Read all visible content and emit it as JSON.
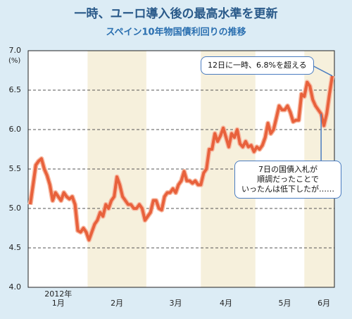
{
  "chart_data": {
    "type": "line",
    "title": "一時、ユーロ導入後の最高水準を更新",
    "subtitle": "スペイン10年物国債利回りの推移",
    "y_unit": "(%)",
    "color": "#e8613c",
    "categories": [
      null,
      null,
      null,
      null,
      null,
      null,
      null,
      null,
      null,
      null,
      "2012年\n1月",
      null,
      null,
      null,
      null,
      null,
      null,
      null,
      null,
      null,
      null,
      null,
      null,
      null,
      null,
      null,
      null,
      null,
      null,
      null,
      null,
      "2月",
      null,
      null,
      null,
      null,
      null,
      null,
      null,
      null,
      null,
      null,
      null,
      null,
      null,
      null,
      null,
      null,
      null,
      null,
      null,
      null,
      "3月",
      null,
      null,
      null,
      null,
      null,
      null,
      null,
      null,
      null,
      null,
      null,
      null,
      null,
      null,
      null,
      null,
      null,
      "4月",
      null,
      null,
      null,
      null,
      null,
      null,
      null,
      null,
      null,
      null,
      null,
      null,
      null,
      null,
      null,
      null,
      null,
      null,
      null,
      null,
      "5月",
      null,
      null,
      null,
      null,
      null,
      null,
      null,
      null,
      null,
      null,
      null,
      null,
      null,
      "6月",
      null,
      null,
      null
    ],
    "values": [
      5.05,
      5.3,
      5.55,
      5.6,
      5.63,
      5.5,
      5.42,
      5.3,
      5.1,
      5.2,
      5.15,
      5.1,
      5.2,
      5.15,
      5.12,
      5.15,
      5.05,
      4.72,
      4.7,
      4.75,
      4.7,
      4.6,
      4.7,
      4.8,
      4.85,
      4.95,
      4.9,
      5.05,
      5.0,
      5.1,
      5.15,
      5.4,
      5.3,
      5.15,
      5.1,
      5.05,
      5.05,
      5.0,
      5.0,
      5.05,
      5.0,
      4.85,
      4.9,
      4.95,
      5.1,
      5.1,
      5.0,
      4.98,
      5.15,
      5.2,
      5.2,
      5.25,
      5.2,
      5.3,
      5.35,
      5.47,
      5.35,
      5.35,
      5.32,
      5.35,
      5.3,
      5.3,
      5.45,
      5.5,
      5.75,
      5.75,
      5.95,
      5.85,
      5.92,
      6.02,
      5.9,
      5.78,
      5.95,
      5.9,
      6.0,
      5.82,
      5.78,
      5.85,
      5.78,
      5.8,
      5.72,
      5.78,
      5.75,
      5.8,
      5.9,
      6.08,
      5.95,
      6.0,
      6.15,
      6.3,
      6.25,
      6.25,
      6.3,
      6.22,
      6.1,
      6.12,
      6.12,
      6.45,
      6.42,
      6.6,
      6.55,
      6.38,
      6.3,
      6.25,
      6.2,
      6.05,
      6.2,
      6.45,
      6.68
    ],
    "ylim": [
      4.0,
      7.0
    ],
    "yticks": [
      {
        "value": 4.0,
        "label": "4.0"
      },
      {
        "value": 4.5,
        "label": "4.5"
      },
      {
        "value": 5.0,
        "label": "5.0"
      },
      {
        "value": 5.5,
        "label": "5.5"
      },
      {
        "value": 6.0,
        "label": "6.0"
      },
      {
        "value": 6.5,
        "label": "6.5"
      },
      {
        "value": 7.0,
        "label": "7.0"
      }
    ],
    "grid": true,
    "annotations": [
      {
        "text": "12日に一時、6.8%を超える",
        "index": 108
      },
      {
        "text": "7日の国債入札が\n順調だったことで\nいったんは低下したが……",
        "index": 104
      }
    ]
  }
}
